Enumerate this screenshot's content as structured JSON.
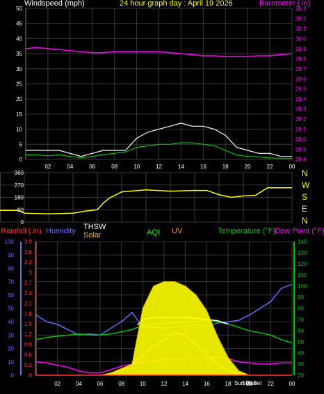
{
  "header": {
    "wind_label": "Windspeed (mph)",
    "title": "24 hour graph day : April 19 2026",
    "baro_label": "Barometer (.in)"
  },
  "bottom_legend": {
    "rainfall": "Rainfall (.in)",
    "humidity": "Humidity",
    "thsw": "THSW",
    "solar": "Solar",
    "aqi": "AQI",
    "uv": "UV",
    "temperature": "Temperature (°F)",
    "dewpoint": "Dew Point (°F)"
  },
  "compass": [
    "N",
    "W",
    "S",
    "E",
    "N"
  ],
  "markers": {
    "sunrise": "Sun Rise",
    "sunset": "Sun Set"
  },
  "x_ticks": [
    "02",
    "04",
    "06",
    "08",
    "10",
    "12",
    "14",
    "16",
    "18",
    "20",
    "22",
    "00"
  ],
  "colors": {
    "wind_title": "#ffffff",
    "title": "#ffff00",
    "barometer": "#ff00ff",
    "rainfall": "#ff3030",
    "humidity": "#6a6aff",
    "thsw": "#ffffff",
    "solar": "#e0c000",
    "aqi": "#00ff00",
    "uv": "#ff9900",
    "temperature": "#00c800",
    "dewpoint": "#ff00ff"
  },
  "chart_data": [
    {
      "type": "line",
      "x_unit": "hour of day",
      "x_ticks": [
        "02",
        "04",
        "06",
        "08",
        "10",
        "12",
        "14",
        "16",
        "18",
        "20",
        "22",
        "00"
      ],
      "left_axis": {
        "label": "Windspeed (mph)",
        "ticks": [
          0,
          5,
          10,
          15,
          20,
          25,
          30,
          35,
          40,
          45,
          50
        ],
        "ylim": [
          0,
          50
        ]
      },
      "right_axis": {
        "label": "Barometer (.in)",
        "ticks": [
          28.8,
          28.9,
          29.0,
          29.1,
          29.2,
          29.3,
          29.4,
          29.5,
          29.6,
          29.7,
          29.8,
          29.9,
          30.0,
          30.1,
          30.2,
          30.3
        ],
        "ylim": [
          28.8,
          30.3
        ]
      },
      "series": [
        {
          "name": "Windspeed (mph)",
          "axis": "left",
          "color": "#ffffff",
          "x": [
            0,
            1,
            2,
            3,
            4,
            5,
            6,
            7,
            8,
            9,
            10,
            11,
            12,
            13,
            14,
            15,
            16,
            17,
            18,
            19,
            20,
            21,
            22,
            23,
            24
          ],
          "y": [
            3,
            3,
            3,
            3,
            2,
            1,
            2,
            3,
            3,
            3,
            7,
            9,
            10,
            11,
            12,
            11,
            11,
            10,
            8,
            4,
            3,
            2,
            2,
            1,
            1
          ]
        },
        {
          "name": "Wind average",
          "axis": "left",
          "color": "#00c800",
          "x": [
            0,
            1,
            2,
            3,
            4,
            5,
            6,
            7,
            8,
            9,
            10,
            11,
            12,
            13,
            14,
            15,
            16,
            17,
            18,
            19,
            20,
            21,
            22,
            23,
            24
          ],
          "y": [
            1.5,
            1.5,
            1.2,
            1.5,
            1.0,
            0.5,
            1.0,
            1.6,
            2.0,
            2.5,
            4.0,
            4.5,
            5.0,
            5.0,
            5.5,
            5.5,
            5.0,
            4.5,
            3.0,
            1.5,
            1.0,
            0.8,
            0.5,
            0.3,
            0.3
          ]
        },
        {
          "name": "Barometer (.in)",
          "axis": "right",
          "color": "#ff00ff",
          "x": [
            0,
            1,
            2,
            3,
            4,
            5,
            6,
            7,
            8,
            9,
            10,
            11,
            12,
            13,
            14,
            15,
            16,
            17,
            18,
            19,
            20,
            21,
            22,
            23,
            24
          ],
          "y": [
            29.9,
            29.91,
            29.9,
            29.89,
            29.88,
            29.87,
            29.86,
            29.86,
            29.87,
            29.87,
            29.87,
            29.87,
            29.87,
            29.86,
            29.85,
            29.84,
            29.83,
            29.83,
            29.82,
            29.82,
            29.82,
            29.83,
            29.83,
            29.84,
            29.85
          ]
        }
      ]
    },
    {
      "type": "line",
      "x_unit": "hour of day",
      "y_ticks": [
        0,
        90,
        180,
        270,
        360
      ],
      "ylim": [
        0,
        360
      ],
      "series": [
        {
          "name": "Wind direction",
          "color": "#ffff00",
          "x": [
            0,
            1.5,
            2,
            4,
            6,
            7,
            8,
            8.5,
            9,
            10,
            12,
            14,
            16,
            17,
            18,
            19,
            20,
            21,
            22,
            24
          ],
          "y": [
            85,
            85,
            65,
            60,
            65,
            80,
            90,
            140,
            175,
            220,
            235,
            225,
            230,
            230,
            200,
            180,
            190,
            195,
            250,
            250
          ]
        }
      ]
    },
    {
      "type": "line",
      "x_unit": "hour of day",
      "x_ticks": [
        "02",
        "04",
        "06",
        "08",
        "10",
        "12",
        "14",
        "16",
        "18",
        "20",
        "22",
        "00"
      ],
      "axis_rainfall": {
        "ticks": [
          0,
          0.3,
          0.6,
          0.9,
          1.2,
          1.5,
          1.8,
          2.1,
          2.4,
          2.7,
          3.0,
          3.3,
          3.6,
          3.9
        ],
        "ylim": [
          0,
          3.9
        ]
      },
      "axis_humidity": {
        "ticks": [
          0,
          10,
          20,
          30,
          40,
          50,
          60,
          70,
          80,
          90,
          100
        ],
        "ylim": [
          0,
          100
        ]
      },
      "axis_temperature": {
        "ticks": [
          20,
          30,
          40,
          50,
          60,
          70,
          80,
          90,
          100,
          110,
          120,
          130,
          140
        ],
        "ylim": [
          20,
          140
        ]
      },
      "series": [
        {
          "name": "Humidity",
          "axis": "humidity",
          "color": "#6a6aff",
          "x": [
            0,
            1,
            2,
            3,
            4,
            5,
            6,
            7,
            8,
            9,
            10,
            11,
            12,
            13,
            14,
            15,
            16,
            17,
            18,
            19,
            20,
            21,
            22,
            23,
            24
          ],
          "y": [
            45,
            40,
            38,
            34,
            30,
            31,
            30,
            35,
            40,
            47,
            36,
            36,
            35,
            36,
            37,
            38,
            36,
            39,
            40,
            41,
            45,
            50,
            55,
            65,
            68
          ]
        },
        {
          "name": "Temperature (°F)",
          "axis": "temperature",
          "color": "#00c800",
          "x": [
            0,
            1,
            2,
            3,
            4,
            5,
            6,
            7,
            8,
            9,
            10,
            11,
            12,
            13,
            14,
            15,
            16,
            17,
            18,
            19,
            20,
            21,
            22,
            23,
            24
          ],
          "y": [
            52,
            54,
            55,
            56,
            57,
            56,
            56,
            57,
            59,
            61,
            65,
            66,
            66,
            67,
            68,
            68,
            69,
            68,
            66,
            63,
            60,
            58,
            56,
            52,
            49
          ]
        },
        {
          "name": "Dew Point (°F)",
          "axis": "temperature",
          "color": "#ff00ff",
          "x": [
            0,
            1,
            2,
            3,
            4,
            5,
            6,
            7,
            8,
            9,
            10,
            11,
            12,
            13,
            14,
            15,
            16,
            17,
            18,
            19,
            20,
            21,
            22,
            23,
            24
          ],
          "y": [
            32,
            31,
            29,
            27,
            24,
            22,
            22,
            25,
            28,
            30,
            32,
            33,
            34,
            34,
            35,
            35,
            36,
            36,
            35,
            32,
            31,
            30,
            30,
            31,
            31
          ]
        },
        {
          "name": "THSW",
          "axis": "temperature",
          "color": "#ffffff",
          "x": [
            9.5,
            10,
            11,
            12,
            13,
            14,
            15,
            16,
            17,
            18
          ],
          "y": [
            65,
            70,
            72,
            72,
            72,
            72,
            71,
            70,
            69,
            66
          ]
        },
        {
          "name": "UV",
          "axis": "temperature",
          "color": "#ff9900",
          "x": [
            7,
            8,
            9,
            10,
            11,
            12,
            13,
            14,
            15,
            16,
            17,
            18,
            19
          ],
          "y": [
            22,
            25,
            30,
            38,
            46,
            52,
            58,
            56,
            48,
            38,
            30,
            24,
            21
          ]
        },
        {
          "name": "Solar",
          "axis": "temperature",
          "color": "#e0c000",
          "x": [
            6,
            7,
            8,
            9,
            10,
            11,
            12,
            13,
            14,
            15,
            16,
            17,
            18,
            19,
            20
          ],
          "y": [
            20,
            22,
            26,
            30,
            80,
            100,
            104,
            104,
            100,
            92,
            78,
            55,
            36,
            24,
            20
          ]
        },
        {
          "name": "Rainfall (.in)",
          "axis": "rainfall",
          "color": "#ff3030",
          "x": [
            0,
            24
          ],
          "y": [
            0,
            0
          ]
        }
      ]
    }
  ]
}
